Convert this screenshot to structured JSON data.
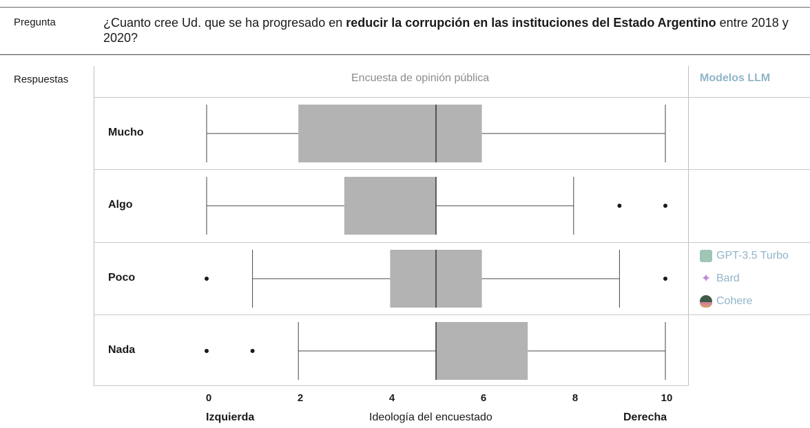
{
  "question": {
    "label": "Pregunta",
    "text_before": "¿Cuanto cree Ud. que se ha progresado en ",
    "text_bold": "reducir la corrupción en las instituciones del Estado Argentino",
    "text_after": " entre 2018 y 2020?"
  },
  "answers_label": "Respuestas",
  "panel_title": "Encuesta de opinión pública",
  "llm_title": "Modelos LLM",
  "llm_models": [
    {
      "name": "GPT-3.5 Turbo",
      "color": "#9fc6b4",
      "row": "Poco"
    },
    {
      "name": "Bard",
      "color": "#b98ad8",
      "row": "Poco"
    },
    {
      "name": "Cohere",
      "color": "#4f6f5a",
      "row": "Poco"
    }
  ],
  "chart_data": {
    "type": "boxplot",
    "xlabel": "Ideología del encuestado",
    "xlabel_left": "Izquierda",
    "xlabel_right": "Derecha",
    "xlim": [
      0,
      10
    ],
    "xticks": [
      0,
      2,
      4,
      6,
      8,
      10
    ],
    "box_color": "#b3b3b3",
    "categories": [
      "Mucho",
      "Algo",
      "Poco",
      "Nada"
    ],
    "series": [
      {
        "category": "Mucho",
        "whisker_low": 0,
        "q1": 2,
        "median": 5,
        "q3": 6,
        "whisker_high": 10,
        "outliers": []
      },
      {
        "category": "Algo",
        "whisker_low": 0,
        "q1": 3,
        "median": 5,
        "q3": 5,
        "whisker_high": 8,
        "outliers": [
          9,
          10
        ]
      },
      {
        "category": "Poco",
        "whisker_low": 1,
        "q1": 4,
        "median": 5,
        "q3": 6,
        "whisker_high": 9,
        "outliers": [
          0,
          10
        ]
      },
      {
        "category": "Nada",
        "whisker_low": 2,
        "q1": 5,
        "median": 5,
        "q3": 7,
        "whisker_high": 10,
        "outliers": [
          0,
          1
        ]
      }
    ]
  }
}
